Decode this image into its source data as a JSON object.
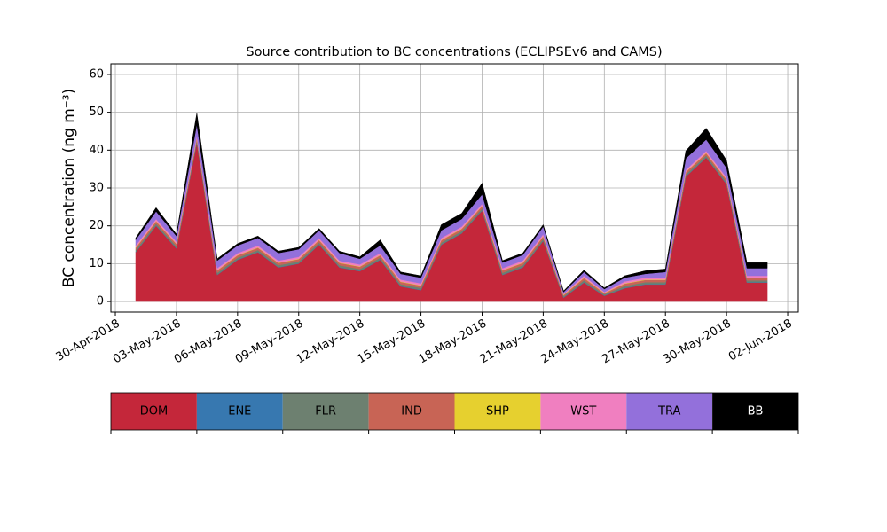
{
  "chart_data": {
    "type": "stacked_area",
    "title": "Source contribution to BC concentrations (ECLIPSEv6 and CAMS)",
    "y_label": "BC concentration (ng m⁻³)",
    "x": [
      "2018-05-01",
      "2018-05-02",
      "2018-05-03",
      "2018-05-04",
      "2018-05-05",
      "2018-05-06",
      "2018-05-07",
      "2018-05-08",
      "2018-05-09",
      "2018-05-10",
      "2018-05-11",
      "2018-05-12",
      "2018-05-13",
      "2018-05-14",
      "2018-05-15",
      "2018-05-16",
      "2018-05-17",
      "2018-05-18",
      "2018-05-19",
      "2018-05-20",
      "2018-05-21",
      "2018-05-22",
      "2018-05-23",
      "2018-05-24",
      "2018-05-25",
      "2018-05-26",
      "2018-05-27",
      "2018-05-28",
      "2018-05-29",
      "2018-05-30",
      "2018-05-31",
      "2018-06-01"
    ],
    "series": [
      {
        "name": "DOM",
        "color": "#c4273a",
        "values": [
          13,
          20,
          14,
          42,
          7,
          11,
          13,
          9,
          10,
          15,
          9,
          8,
          11,
          4,
          3,
          15,
          18,
          24,
          7,
          9,
          16,
          1,
          5,
          1.5,
          3.5,
          4.5,
          4.5,
          33,
          38,
          31,
          5,
          5
        ]
      },
      {
        "name": "ENE",
        "color": "#3778b0",
        "values": [
          0.1,
          0.1,
          0.1,
          0.1,
          0.1,
          0.1,
          0.1,
          0.1,
          0.1,
          0.1,
          0.1,
          0.1,
          0.1,
          0.1,
          0.1,
          0.1,
          0.1,
          0.1,
          0.1,
          0.1,
          0.1,
          0.1,
          0.1,
          0.1,
          0.1,
          0.1,
          0.1,
          0.1,
          0.1,
          0.1,
          0.1,
          0.1
        ]
      },
      {
        "name": "FLR",
        "color": "#6d8070",
        "values": [
          0.5,
          0.5,
          0.5,
          0.5,
          0.5,
          0.5,
          0.5,
          0.5,
          0.5,
          0.5,
          0.5,
          0.5,
          0.5,
          0.5,
          0.5,
          0.5,
          0.5,
          0.5,
          0.5,
          0.5,
          0.5,
          0.3,
          0.5,
          0.3,
          0.5,
          0.5,
          0.5,
          0.5,
          0.5,
          0.5,
          0.5,
          0.5
        ]
      },
      {
        "name": "IND",
        "color": "#c86455",
        "values": [
          0.6,
          0.6,
          0.6,
          0.6,
          0.6,
          0.6,
          0.6,
          0.6,
          0.6,
          0.6,
          0.6,
          0.6,
          0.6,
          0.6,
          0.6,
          0.6,
          0.6,
          0.6,
          0.6,
          0.6,
          0.6,
          0.3,
          0.6,
          0.3,
          0.6,
          0.6,
          0.6,
          0.6,
          0.6,
          0.6,
          0.6,
          0.6
        ]
      },
      {
        "name": "SHP",
        "color": "#e6d02f",
        "values": [
          0.1,
          0.1,
          0.1,
          0.1,
          0.1,
          0.1,
          0.1,
          0.1,
          0.1,
          0.1,
          0.1,
          0.1,
          0.1,
          0.1,
          0.1,
          0.1,
          0.1,
          0.1,
          0.1,
          0.1,
          0.1,
          0.1,
          0.1,
          0.1,
          0.1,
          0.1,
          0.1,
          0.1,
          0.1,
          0.1,
          0.1,
          0.1
        ]
      },
      {
        "name": "WST",
        "color": "#f07fc0",
        "values": [
          0.5,
          0.5,
          0.5,
          0.5,
          0.5,
          0.5,
          0.5,
          0.5,
          0.5,
          0.5,
          0.5,
          0.5,
          0.5,
          0.5,
          0.5,
          0.5,
          0.5,
          0.5,
          0.5,
          0.5,
          0.5,
          0.2,
          0.5,
          0.2,
          0.5,
          0.5,
          0.5,
          0.5,
          0.5,
          0.5,
          0.5,
          0.5
        ]
      },
      {
        "name": "TRA",
        "color": "#9370db",
        "values": [
          1.5,
          2,
          1.5,
          3,
          2,
          2,
          2,
          2,
          2,
          2,
          2,
          1.5,
          2,
          1.5,
          1.5,
          2,
          2,
          2.5,
          1.5,
          1.5,
          2,
          0.5,
          1,
          0.8,
          1,
          1,
          1.5,
          3,
          3,
          2.5,
          2,
          2
        ]
      },
      {
        "name": "BB",
        "color": "#000000",
        "values": [
          0.5,
          1,
          0.5,
          3,
          0.5,
          0.5,
          0.5,
          0.5,
          0.5,
          0.5,
          0.5,
          0.5,
          1.5,
          0.5,
          0.5,
          1.5,
          1.5,
          3,
          0.5,
          0.5,
          0.5,
          0.3,
          0.5,
          0.3,
          0.5,
          0.8,
          0.8,
          2,
          3,
          2,
          1.5,
          1.5
        ]
      }
    ],
    "xlim": [
      "2018-04-29T18:45",
      "2018-06-02T12:30"
    ],
    "xticks": [
      {
        "value": "2018-04-30",
        "label": "30-Apr-2018"
      },
      {
        "value": "2018-05-03",
        "label": "03-May-2018"
      },
      {
        "value": "2018-05-06",
        "label": "06-May-2018"
      },
      {
        "value": "2018-05-09",
        "label": "09-May-2018"
      },
      {
        "value": "2018-05-12",
        "label": "12-May-2018"
      },
      {
        "value": "2018-05-15",
        "label": "15-May-2018"
      },
      {
        "value": "2018-05-18",
        "label": "18-May-2018"
      },
      {
        "value": "2018-05-21",
        "label": "21-May-2018"
      },
      {
        "value": "2018-05-24",
        "label": "24-May-2018"
      },
      {
        "value": "2018-05-27",
        "label": "27-May-2018"
      },
      {
        "value": "2018-05-30",
        "label": "30-May-2018"
      },
      {
        "value": "2018-06-02",
        "label": "02-Jun-2018"
      }
    ],
    "ylim": [
      -2.8,
      62.8
    ],
    "yticks": [
      0,
      10,
      20,
      30,
      40,
      50,
      60
    ],
    "grid": true,
    "legend": "bottom"
  }
}
